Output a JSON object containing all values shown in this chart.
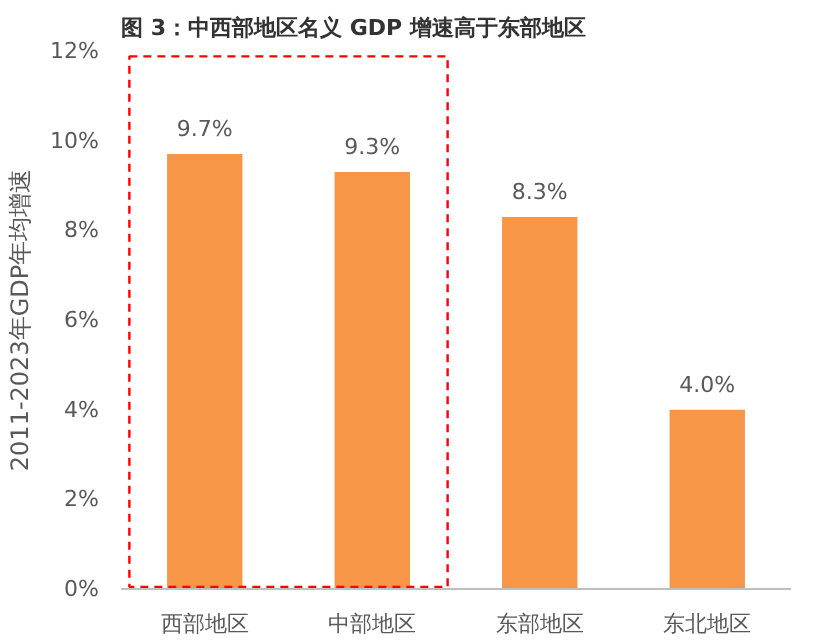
{
  "chart_data": {
    "type": "bar",
    "title": "图 3：中西部地区名义 GDP 增速高于东部地区",
    "ylabel": "2011-2023年GDP年均增速",
    "categories": [
      "西部地区",
      "中部地区",
      "东部地区",
      "东北地区"
    ],
    "values": [
      9.7,
      9.3,
      8.3,
      4.0
    ],
    "color": "#f79646",
    "value_labels": [
      "9.7%",
      "9.3%",
      "8.3%",
      "4.0%"
    ],
    "ylim": [
      0,
      12
    ],
    "yticks": [
      {
        "value": 0,
        "label": "0%"
      },
      {
        "value": 2,
        "label": "2%"
      },
      {
        "value": 4,
        "label": "4%"
      },
      {
        "value": 6,
        "label": "6%"
      },
      {
        "value": 8,
        "label": "8%"
      },
      {
        "value": 10,
        "label": "10%"
      },
      {
        "value": 12,
        "label": "12%"
      }
    ],
    "grid": false
  }
}
